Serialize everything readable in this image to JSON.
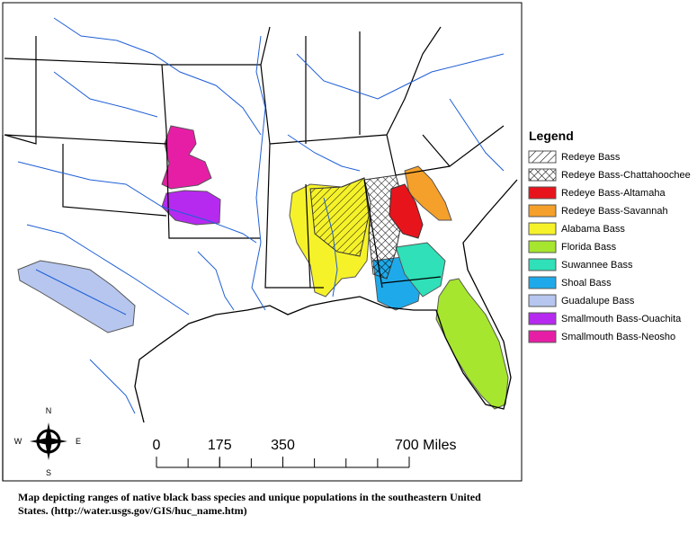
{
  "legend": {
    "title": "Legend",
    "items": [
      {
        "label": "Redeye Bass",
        "color": "#ffffff",
        "pattern": "hatch"
      },
      {
        "label": "Redeye Bass-Chattahoochee",
        "color": "#ffffff",
        "pattern": "crosshatch"
      },
      {
        "label": "Redeye Bass-Altamaha",
        "color": "#e8141c"
      },
      {
        "label": "Redeye Bass-Savannah",
        "color": "#f5a02a"
      },
      {
        "label": "Alabama Bass",
        "color": "#f6f22a"
      },
      {
        "label": "Florida Bass",
        "color": "#a6e62e"
      },
      {
        "label": "Suwannee Bass",
        "color": "#2fe0b8"
      },
      {
        "label": "Shoal Bass",
        "color": "#1eaaea"
      },
      {
        "label": "Guadalupe Bass",
        "color": "#b6c6ee"
      },
      {
        "label": "Smallmouth Bass-Ouachita",
        "color": "#b62af0"
      },
      {
        "label": "Smallmouth Bass-Neosho",
        "color": "#e61ea6"
      }
    ]
  },
  "compass": {
    "north": "N",
    "south": "S",
    "east": "E",
    "west": "W"
  },
  "scale_bar": {
    "ticks": [
      {
        "value": 0,
        "label": "0"
      },
      {
        "value": 175,
        "label": "175"
      },
      {
        "value": 350,
        "label": "350"
      },
      {
        "value": 700,
        "label": "700 Miles"
      }
    ]
  },
  "caption": "Map depicting ranges of native black bass species and unique populations in the southeastern United States.  (http://water.usgs.gov/GIS/huc_name.htm)"
}
